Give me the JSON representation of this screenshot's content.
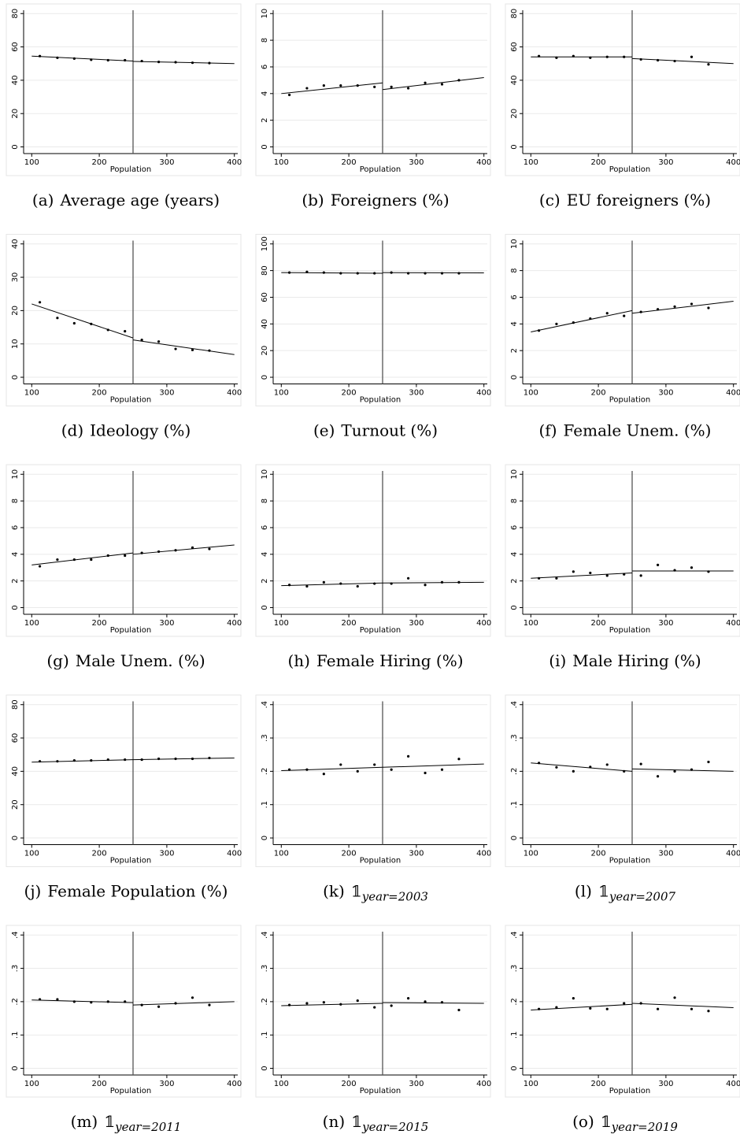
{
  "chart_data": [
    {
      "type": "scatter",
      "caption": {
        "tag": "(a)",
        "text": "Average age (years)"
      },
      "xlabel": "Population",
      "color": "#000000",
      "grid": true,
      "xlim": [
        88,
        405
      ],
      "xticks": [
        100,
        200,
        300,
        400
      ],
      "ylim": [
        -4,
        82
      ],
      "yticks": [
        0,
        20,
        40,
        60,
        80
      ],
      "cutoff": 250,
      "x": [
        112,
        138,
        163,
        188,
        213,
        238,
        263,
        288,
        313,
        338,
        363
      ],
      "values": [
        54.5,
        53.5,
        53,
        52.3,
        52,
        52,
        51.5,
        51,
        50.8,
        50.5,
        50.3
      ],
      "fits": [
        {
          "x": [
            100,
            250
          ],
          "values": [
            54.5,
            51.5
          ]
        },
        {
          "x": [
            250,
            400
          ],
          "values": [
            51.3,
            50
          ]
        }
      ]
    },
    {
      "type": "scatter",
      "caption": {
        "tag": "(b)",
        "text": "Foreigners (%)"
      },
      "xlabel": "Population",
      "color": "#000000",
      "grid": true,
      "xlim": [
        88,
        405
      ],
      "xticks": [
        100,
        200,
        300,
        400
      ],
      "ylim": [
        -0.5,
        10.25
      ],
      "yticks": [
        0,
        2,
        4,
        6,
        8,
        10
      ],
      "cutoff": 250,
      "x": [
        112,
        138,
        163,
        188,
        213,
        238,
        263,
        288,
        313,
        338,
        363
      ],
      "values": [
        3.9,
        4.4,
        4.6,
        4.6,
        4.6,
        4.5,
        4.5,
        4.4,
        4.8,
        4.7,
        5.0
      ],
      "fits": [
        {
          "x": [
            100,
            250
          ],
          "values": [
            4.0,
            4.8
          ]
        },
        {
          "x": [
            250,
            400
          ],
          "values": [
            4.3,
            5.2
          ]
        }
      ]
    },
    {
      "type": "scatter",
      "caption": {
        "tag": "(c)",
        "text": "EU foreigners (%)"
      },
      "xlabel": "Population",
      "color": "#000000",
      "grid": true,
      "xlim": [
        88,
        405
      ],
      "xticks": [
        100,
        200,
        300,
        400
      ],
      "ylim": [
        -4,
        82
      ],
      "yticks": [
        0,
        20,
        40,
        60,
        80
      ],
      "cutoff": 250,
      "x": [
        112,
        138,
        163,
        188,
        213,
        238,
        263,
        288,
        313,
        338,
        363
      ],
      "values": [
        54.5,
        53.5,
        54.5,
        53.5,
        54,
        54,
        52.5,
        52,
        51.5,
        54,
        49.5
      ],
      "fits": [
        {
          "x": [
            100,
            250
          ],
          "values": [
            54,
            54
          ]
        },
        {
          "x": [
            250,
            400
          ],
          "values": [
            53,
            50
          ]
        }
      ]
    },
    {
      "type": "scatter",
      "caption": {
        "tag": "(d)",
        "text": "Ideology (%)"
      },
      "xlabel": "Population",
      "color": "#000000",
      "grid": true,
      "xlim": [
        88,
        405
      ],
      "xticks": [
        100,
        200,
        300,
        400
      ],
      "ylim": [
        -2,
        41
      ],
      "yticks": [
        0,
        10,
        20,
        30,
        40
      ],
      "cutoff": 250,
      "x": [
        112,
        138,
        163,
        188,
        213,
        238,
        263,
        288,
        313,
        338,
        363
      ],
      "values": [
        22.5,
        17.8,
        16.2,
        16,
        14.2,
        13.8,
        11.2,
        10.7,
        8.5,
        8.2,
        8
      ],
      "fits": [
        {
          "x": [
            100,
            250
          ],
          "values": [
            22,
            11.8
          ]
        },
        {
          "x": [
            250,
            400
          ],
          "values": [
            11.2,
            6.8
          ]
        }
      ]
    },
    {
      "type": "scatter",
      "caption": {
        "tag": "(e)",
        "text": "Turnout (%)"
      },
      "xlabel": "Population",
      "color": "#000000",
      "grid": true,
      "xlim": [
        88,
        405
      ],
      "xticks": [
        100,
        200,
        300,
        400
      ],
      "ylim": [
        -5,
        102.5
      ],
      "yticks": [
        0,
        20,
        40,
        60,
        80,
        100
      ],
      "cutoff": 250,
      "x": [
        112,
        138,
        163,
        188,
        213,
        238,
        263,
        288,
        313,
        338,
        363
      ],
      "values": [
        78.5,
        79,
        78.5,
        78,
        78,
        78,
        78.5,
        78,
        78,
        78,
        78
      ],
      "fits": [
        {
          "x": [
            100,
            250
          ],
          "values": [
            78.5,
            78
          ]
        },
        {
          "x": [
            250,
            400
          ],
          "values": [
            78.5,
            78.3
          ]
        }
      ]
    },
    {
      "type": "scatter",
      "caption": {
        "tag": "(f)",
        "text": "Female Unem. (%)"
      },
      "xlabel": "Population",
      "color": "#000000",
      "grid": true,
      "xlim": [
        88,
        405
      ],
      "xticks": [
        100,
        200,
        300,
        400
      ],
      "ylim": [
        -0.5,
        10.25
      ],
      "yticks": [
        0,
        2,
        4,
        6,
        8,
        10
      ],
      "cutoff": 250,
      "x": [
        112,
        138,
        163,
        188,
        213,
        238,
        263,
        288,
        313,
        338,
        363
      ],
      "values": [
        3.5,
        4.0,
        4.1,
        4.4,
        4.8,
        4.6,
        4.9,
        5.1,
        5.3,
        5.5,
        5.2
      ],
      "fits": [
        {
          "x": [
            100,
            250
          ],
          "values": [
            3.4,
            5.0
          ]
        },
        {
          "x": [
            250,
            400
          ],
          "values": [
            4.8,
            5.7
          ]
        }
      ]
    },
    {
      "type": "scatter",
      "caption": {
        "tag": "(g)",
        "text": "Male Unem. (%)"
      },
      "xlabel": "Population",
      "color": "#000000",
      "grid": true,
      "xlim": [
        88,
        405
      ],
      "xticks": [
        100,
        200,
        300,
        400
      ],
      "ylim": [
        -0.5,
        10.25
      ],
      "yticks": [
        0,
        2,
        4,
        6,
        8,
        10
      ],
      "cutoff": 250,
      "x": [
        112,
        138,
        163,
        188,
        213,
        238,
        263,
        288,
        313,
        338,
        363
      ],
      "values": [
        3.1,
        3.6,
        3.6,
        3.6,
        3.9,
        3.9,
        4.1,
        4.2,
        4.3,
        4.5,
        4.4
      ],
      "fits": [
        {
          "x": [
            100,
            250
          ],
          "values": [
            3.2,
            4.1
          ]
        },
        {
          "x": [
            250,
            400
          ],
          "values": [
            4.0,
            4.7
          ]
        }
      ]
    },
    {
      "type": "scatter",
      "caption": {
        "tag": "(h)",
        "text": "Female Hiring (%)"
      },
      "xlabel": "Population",
      "color": "#000000",
      "grid": true,
      "xlim": [
        88,
        405
      ],
      "xticks": [
        100,
        200,
        300,
        400
      ],
      "ylim": [
        -0.5,
        10.25
      ],
      "yticks": [
        0,
        2,
        4,
        6,
        8,
        10
      ],
      "cutoff": 250,
      "x": [
        112,
        138,
        163,
        188,
        213,
        238,
        263,
        288,
        313,
        338,
        363
      ],
      "values": [
        1.7,
        1.6,
        1.9,
        1.8,
        1.6,
        1.8,
        1.8,
        2.2,
        1.7,
        1.9,
        1.9
      ],
      "fits": [
        {
          "x": [
            100,
            250
          ],
          "values": [
            1.65,
            1.85
          ]
        },
        {
          "x": [
            250,
            400
          ],
          "values": [
            1.85,
            1.9
          ]
        }
      ]
    },
    {
      "type": "scatter",
      "caption": {
        "tag": "(i)",
        "text": "Male Hiring (%)"
      },
      "xlabel": "Population",
      "color": "#000000",
      "grid": true,
      "xlim": [
        88,
        405
      ],
      "xticks": [
        100,
        200,
        300,
        400
      ],
      "ylim": [
        -0.5,
        10.25
      ],
      "yticks": [
        0,
        2,
        4,
        6,
        8,
        10
      ],
      "cutoff": 250,
      "x": [
        112,
        138,
        163,
        188,
        213,
        238,
        263,
        288,
        313,
        338,
        363
      ],
      "values": [
        2.2,
        2.2,
        2.7,
        2.6,
        2.4,
        2.5,
        2.4,
        3.2,
        2.8,
        3.0,
        2.7
      ],
      "fits": [
        {
          "x": [
            100,
            250
          ],
          "values": [
            2.2,
            2.6
          ]
        },
        {
          "x": [
            250,
            400
          ],
          "values": [
            2.75,
            2.75
          ]
        }
      ]
    },
    {
      "type": "scatter",
      "caption": {
        "tag": "(j)",
        "text": "Female Population (%)"
      },
      "xlabel": "Population",
      "color": "#000000",
      "grid": true,
      "xlim": [
        88,
        405
      ],
      "xticks": [
        100,
        200,
        300,
        400
      ],
      "ylim": [
        -4,
        82
      ],
      "yticks": [
        0,
        20,
        40,
        60,
        80
      ],
      "cutoff": 250,
      "x": [
        112,
        138,
        163,
        188,
        213,
        238,
        263,
        288,
        313,
        338,
        363
      ],
      "values": [
        46,
        46,
        46.5,
        46.5,
        47,
        47,
        47,
        47.5,
        47.5,
        47.5,
        48
      ],
      "fits": [
        {
          "x": [
            100,
            250
          ],
          "values": [
            45.5,
            47
          ]
        },
        {
          "x": [
            250,
            400
          ],
          "values": [
            47,
            48
          ]
        }
      ]
    },
    {
      "type": "scatter",
      "caption": {
        "tag": "(k)",
        "text": "𝟙",
        "sub": "year=2003"
      },
      "xlabel": "Population",
      "color": "#000000",
      "grid": true,
      "xlim": [
        88,
        405
      ],
      "xticks": [
        100,
        200,
        300,
        400
      ],
      "ylim": [
        -0.02,
        0.41
      ],
      "yticks": [
        0,
        {
          "value": 0.1,
          "label": ".1"
        },
        {
          "value": 0.2,
          "label": ".2"
        },
        {
          "value": 0.3,
          "label": ".3"
        },
        {
          "value": 0.4,
          "label": ".4"
        }
      ],
      "cutoff": 250,
      "x": [
        112,
        138,
        163,
        188,
        213,
        238,
        263,
        288,
        313,
        338,
        363
      ],
      "values": [
        0.205,
        0.205,
        0.192,
        0.22,
        0.2,
        0.22,
        0.205,
        0.245,
        0.195,
        0.205,
        0.237
      ],
      "fits": [
        {
          "x": [
            100,
            250
          ],
          "values": [
            0.202,
            0.212
          ]
        },
        {
          "x": [
            250,
            400
          ],
          "values": [
            0.212,
            0.222
          ]
        }
      ]
    },
    {
      "type": "scatter",
      "caption": {
        "tag": "(l)",
        "text": "𝟙",
        "sub": "year=2007"
      },
      "xlabel": "Population",
      "color": "#000000",
      "grid": true,
      "xlim": [
        88,
        405
      ],
      "xticks": [
        100,
        200,
        300,
        400
      ],
      "ylim": [
        -0.02,
        0.41
      ],
      "yticks": [
        0,
        {
          "value": 0.1,
          "label": ".1"
        },
        {
          "value": 0.2,
          "label": ".2"
        },
        {
          "value": 0.3,
          "label": ".3"
        },
        {
          "value": 0.4,
          "label": ".4"
        }
      ],
      "cutoff": 250,
      "x": [
        112,
        138,
        163,
        188,
        213,
        238,
        263,
        288,
        313,
        338,
        363
      ],
      "values": [
        0.225,
        0.212,
        0.2,
        0.213,
        0.22,
        0.2,
        0.222,
        0.185,
        0.2,
        0.205,
        0.228
      ],
      "fits": [
        {
          "x": [
            100,
            250
          ],
          "values": [
            0.225,
            0.2
          ]
        },
        {
          "x": [
            250,
            400
          ],
          "values": [
            0.207,
            0.2
          ]
        }
      ]
    },
    {
      "type": "scatter",
      "caption": {
        "tag": "(m)",
        "text": "𝟙",
        "sub": "year=2011"
      },
      "xlabel": "Population",
      "color": "#000000",
      "grid": true,
      "xlim": [
        88,
        405
      ],
      "xticks": [
        100,
        200,
        300,
        400
      ],
      "ylim": [
        -0.02,
        0.41
      ],
      "yticks": [
        0,
        {
          "value": 0.1,
          "label": ".1"
        },
        {
          "value": 0.2,
          "label": ".2"
        },
        {
          "value": 0.3,
          "label": ".3"
        },
        {
          "value": 0.4,
          "label": ".4"
        }
      ],
      "cutoff": 250,
      "x": [
        112,
        138,
        163,
        188,
        213,
        238,
        263,
        288,
        313,
        338,
        363
      ],
      "values": [
        0.207,
        0.207,
        0.2,
        0.198,
        0.2,
        0.2,
        0.19,
        0.185,
        0.195,
        0.212,
        0.19
      ],
      "fits": [
        {
          "x": [
            100,
            250
          ],
          "values": [
            0.205,
            0.197
          ]
        },
        {
          "x": [
            250,
            400
          ],
          "values": [
            0.19,
            0.2
          ]
        }
      ]
    },
    {
      "type": "scatter",
      "caption": {
        "tag": "(n)",
        "text": "𝟙",
        "sub": "year=2015"
      },
      "xlabel": "Population",
      "color": "#000000",
      "grid": true,
      "xlim": [
        88,
        405
      ],
      "xticks": [
        100,
        200,
        300,
        400
      ],
      "ylim": [
        -0.02,
        0.41
      ],
      "yticks": [
        0,
        {
          "value": 0.1,
          "label": ".1"
        },
        {
          "value": 0.2,
          "label": ".2"
        },
        {
          "value": 0.3,
          "label": ".3"
        },
        {
          "value": 0.4,
          "label": ".4"
        }
      ],
      "cutoff": 250,
      "x": [
        112,
        138,
        163,
        188,
        213,
        238,
        263,
        288,
        313,
        338,
        363
      ],
      "values": [
        0.19,
        0.195,
        0.198,
        0.192,
        0.203,
        0.183,
        0.188,
        0.21,
        0.2,
        0.198,
        0.175
      ],
      "fits": [
        {
          "x": [
            100,
            250
          ],
          "values": [
            0.188,
            0.195
          ]
        },
        {
          "x": [
            250,
            400
          ],
          "values": [
            0.197,
            0.195
          ]
        }
      ]
    },
    {
      "type": "scatter",
      "caption": {
        "tag": "(o)",
        "text": "𝟙",
        "sub": "year=2019"
      },
      "xlabel": "Population",
      "color": "#000000",
      "grid": true,
      "xlim": [
        88,
        405
      ],
      "xticks": [
        100,
        200,
        300,
        400
      ],
      "ylim": [
        -0.02,
        0.41
      ],
      "yticks": [
        0,
        {
          "value": 0.1,
          "label": ".1"
        },
        {
          "value": 0.2,
          "label": ".2"
        },
        {
          "value": 0.3,
          "label": ".3"
        },
        {
          "value": 0.4,
          "label": ".4"
        }
      ],
      "cutoff": 250,
      "x": [
        112,
        138,
        163,
        188,
        213,
        238,
        263,
        288,
        313,
        338,
        363
      ],
      "values": [
        0.178,
        0.183,
        0.21,
        0.18,
        0.178,
        0.195,
        0.195,
        0.178,
        0.212,
        0.178,
        0.172
      ],
      "fits": [
        {
          "x": [
            100,
            250
          ],
          "values": [
            0.175,
            0.192
          ]
        },
        {
          "x": [
            250,
            400
          ],
          "values": [
            0.195,
            0.182
          ]
        }
      ]
    }
  ]
}
